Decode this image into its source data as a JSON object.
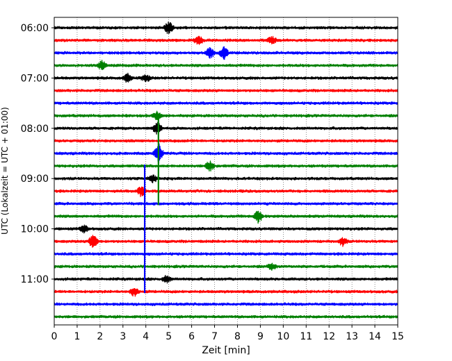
{
  "chart_data": {
    "type": "helicorder",
    "xlabel": "Zeit  [min]",
    "ylabel": "UTC (Lokalzeit = UTC + 01:00)",
    "xlim": [
      0,
      15
    ],
    "x_ticks": [
      0,
      1,
      2,
      3,
      4,
      5,
      6,
      7,
      8,
      9,
      10,
      11,
      12,
      13,
      14,
      15
    ],
    "y_tick_labels": [
      "06:00",
      "07:00",
      "08:00",
      "09:00",
      "10:00",
      "11:00"
    ],
    "grid": "vertical dotted lines at each minute",
    "trace_minutes": 15,
    "trace_count": 24,
    "start_time": "06:00",
    "colors": [
      "#000000",
      "#ff0000",
      "#0000ff",
      "#008000"
    ],
    "events": [
      {
        "row": 0,
        "minute": 5.0,
        "amplitude": 1.2
      },
      {
        "row": 1,
        "minute": 6.3,
        "amplitude": 0.8
      },
      {
        "row": 1,
        "minute": 9.5,
        "amplitude": 0.9
      },
      {
        "row": 2,
        "minute": 6.8,
        "amplitude": 1.1
      },
      {
        "row": 2,
        "minute": 7.4,
        "amplitude": 1.3
      },
      {
        "row": 3,
        "minute": 2.1,
        "amplitude": 1.0
      },
      {
        "row": 4,
        "minute": 3.2,
        "amplitude": 0.8
      },
      {
        "row": 4,
        "minute": 4.0,
        "amplitude": 0.7
      },
      {
        "row": 7,
        "minute": 4.5,
        "amplitude": 0.9
      },
      {
        "row": 8,
        "minute": 4.5,
        "amplitude": 1.2
      },
      {
        "row": 10,
        "minute": 4.55,
        "amplitude": 2.0
      },
      {
        "row": 11,
        "minute": 6.8,
        "amplitude": 1.0
      },
      {
        "row": 12,
        "minute": 4.3,
        "amplitude": 0.8
      },
      {
        "row": 13,
        "minute": 3.8,
        "amplitude": 1.0
      },
      {
        "row": 15,
        "minute": 8.9,
        "amplitude": 1.3
      },
      {
        "row": 16,
        "minute": 1.3,
        "amplitude": 0.7
      },
      {
        "row": 17,
        "minute": 1.7,
        "amplitude": 1.5
      },
      {
        "row": 17,
        "minute": 12.6,
        "amplitude": 0.8
      },
      {
        "row": 19,
        "minute": 9.5,
        "amplitude": 0.6
      },
      {
        "row": 20,
        "minute": 4.9,
        "amplitude": 0.7
      },
      {
        "row": 21,
        "minute": 3.5,
        "amplitude": 0.9
      }
    ],
    "spikes": [
      {
        "start_row": 7,
        "end_row": 14,
        "minute": 4.55,
        "color": "#008000"
      },
      {
        "start_row": 11,
        "end_row": 21,
        "minute": 3.95,
        "color": "#0000ff"
      }
    ]
  }
}
